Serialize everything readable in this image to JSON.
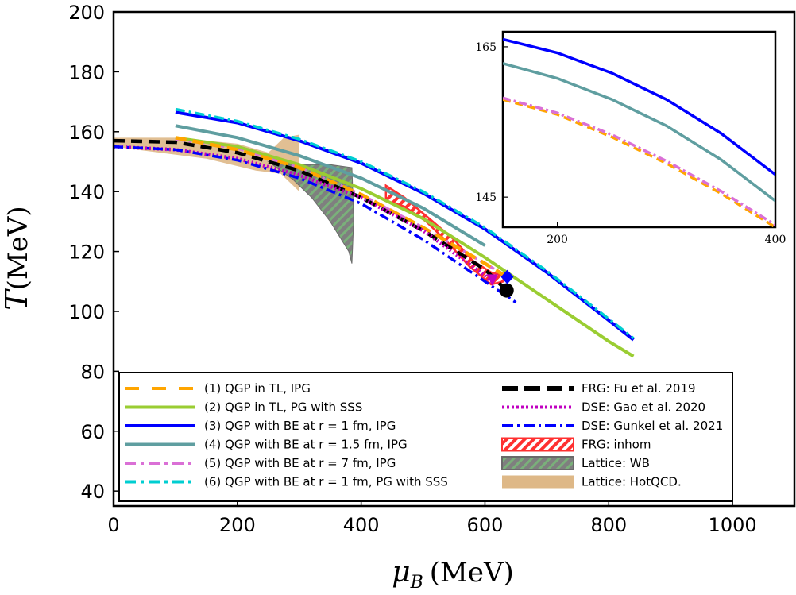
{
  "chart_data": {
    "type": "line",
    "xlabel_main": "μ",
    "xlabel_sub": "B",
    "xlabel_unit": "(MeV)",
    "ylabel_main": "T",
    "ylabel_unit": "(MeV)",
    "xlim": [
      0,
      1100
    ],
    "ylim": [
      35,
      200
    ],
    "x_ticks": [
      "0",
      "200",
      "400",
      "600",
      "800",
      "1000"
    ],
    "y_ticks": [
      "40",
      "60",
      "80",
      "100",
      "120",
      "140",
      "160",
      "180",
      "200"
    ],
    "series": [
      {
        "name": "(1) QGP in TL, IPG",
        "color": "#FFA500",
        "style": "dashed",
        "x": [
          100,
          200,
          300,
          400,
          500,
          600,
          640
        ],
        "y": [
          158,
          154,
          148,
          139,
          128,
          116,
          111
        ]
      },
      {
        "name": "(2) QGP in TL, PG with SSS",
        "color": "#9ACD32",
        "style": "solid",
        "x": [
          100,
          200,
          300,
          400,
          500,
          600,
          700,
          800,
          840
        ],
        "y": [
          158,
          155,
          149,
          141,
          131,
          118,
          104,
          90,
          85
        ]
      },
      {
        "name": "(3) QGP with BE at r = 1 fm, IPG",
        "color": "#0000FF",
        "style": "solid",
        "x": [
          100,
          200,
          300,
          400,
          500,
          600,
          700,
          800,
          840
        ],
        "y": [
          166.5,
          163,
          157,
          149.5,
          139.5,
          127.5,
          113,
          97,
          90.5
        ]
      },
      {
        "name": "(4) QGP with BE at r = 1.5 fm, IPG",
        "color": "#5F9EA0",
        "style": "solid",
        "x": [
          100,
          200,
          300,
          400,
          500,
          600
        ],
        "y": [
          162,
          158,
          152,
          144.5,
          134.5,
          122
        ]
      },
      {
        "name": "(5) QGP with BE at r = 7 fm, IPG",
        "color": "#DA70D6",
        "style": "dashdot",
        "x": [
          100,
          200,
          300,
          400,
          500,
          600,
          640
        ],
        "y": [
          157.5,
          154.5,
          148,
          139,
          128,
          116,
          111
        ]
      },
      {
        "name": "(6) QGP with BE at r = 1 fm, PG with SSS",
        "color": "#00CED1",
        "style": "dashdot",
        "x": [
          100,
          200,
          300,
          400,
          500,
          600,
          700,
          800,
          840
        ],
        "y": [
          167.5,
          163.5,
          157.5,
          150,
          140,
          128,
          113.5,
          97.5,
          91
        ]
      },
      {
        "name": "FRG: Fu et al. 2019",
        "color": "#000000",
        "style": "dashed",
        "x": [
          0,
          100,
          200,
          300,
          400,
          500,
          600,
          635
        ],
        "y": [
          157,
          156.5,
          153,
          147,
          138,
          127,
          114,
          107
        ]
      },
      {
        "name": "DSE: Gao et al. 2020",
        "color": "#C000C0",
        "style": "dotted",
        "x": [
          0,
          100,
          200,
          300,
          400,
          500,
          600,
          610
        ],
        "y": [
          155,
          154,
          151,
          145.5,
          138,
          127,
          112,
          110
        ]
      },
      {
        "name": "DSE: Gunkel et al. 2021",
        "color": "#0000FF",
        "style": "dashdot",
        "x": [
          0,
          100,
          200,
          300,
          400,
          500,
          600,
          650
        ],
        "y": [
          155,
          154,
          150.5,
          144.5,
          136,
          124,
          110,
          103
        ]
      }
    ],
    "bands": [
      {
        "name": "FRG: inhom",
        "color": "#FF3030",
        "hatch": true
      },
      {
        "name": "Lattice: WB",
        "color": "#808080",
        "hatch": true
      },
      {
        "name": "Lattice: HotQCD.",
        "color": "#DEB887",
        "hatch": false
      }
    ],
    "markers": [
      {
        "shape": "circle",
        "x": 635,
        "y": 107,
        "color": "#000000"
      },
      {
        "shape": "diamond",
        "x": 636,
        "y": 111.5,
        "color": "#0000FF"
      },
      {
        "shape": "triangle-down",
        "x": 612,
        "y": 110.5,
        "color": "#C000C0"
      }
    ],
    "inset": {
      "x_ticks": [
        "200",
        "400"
      ],
      "y_ticks": [
        "145",
        "165"
      ],
      "xlim": [
        150,
        400
      ],
      "ylim": [
        141,
        167
      ]
    }
  }
}
